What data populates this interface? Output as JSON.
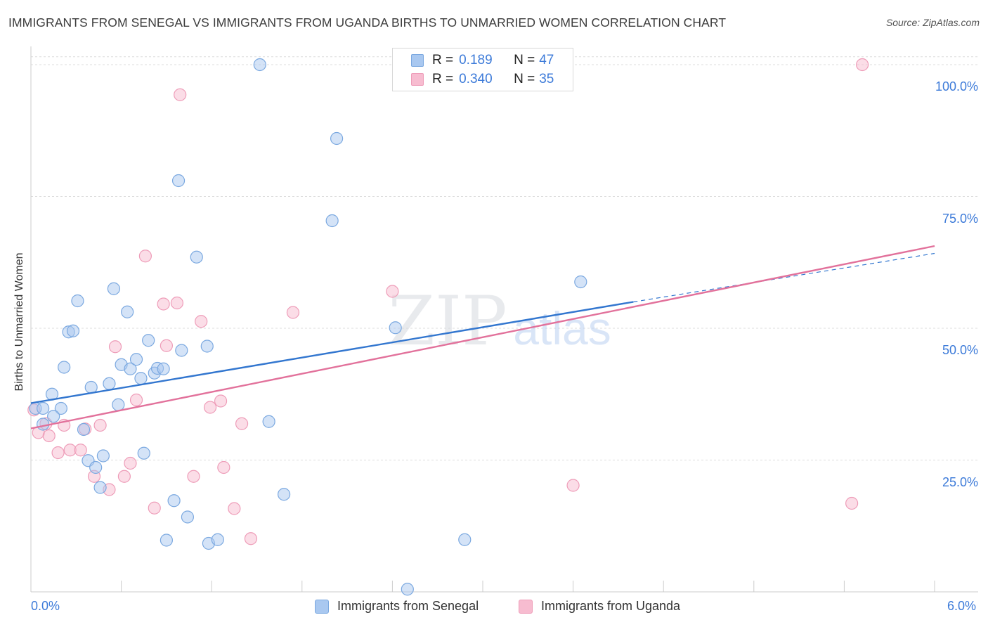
{
  "title": "IMMIGRANTS FROM SENEGAL VS IMMIGRANTS FROM UGANDA BIRTHS TO UNMARRIED WOMEN CORRELATION CHART",
  "source": "Source: ZipAtlas.com",
  "watermark": {
    "zip": "ZIP",
    "atlas": "atlas"
  },
  "legend_top": {
    "r_label": "R =",
    "n_label": "N =",
    "rows": [
      {
        "r": "0.189",
        "n": "47"
      },
      {
        "r": "0.340",
        "n": "35"
      }
    ]
  },
  "colors": {
    "senegal_fill": "#a9c8f0",
    "senegal_stroke": "#7aa8e0",
    "senegal_line": "#3276cf",
    "uganda_fill": "#f7bcd0",
    "uganda_stroke": "#ee9cb8",
    "uganda_line": "#e2719b",
    "grid": "#dcdcdc",
    "axis_text": "#3d7bd9"
  },
  "chart_data": {
    "type": "scatter",
    "title": "IMMIGRANTS FROM SENEGAL VS IMMIGRANTS FROM UGANDA BIRTHS TO UNMARRIED WOMEN CORRELATION CHART",
    "xlabel": "",
    "ylabel": "Births to Unmarried Women",
    "xlim": [
      0,
      6
    ],
    "ylim": [
      0,
      104
    ],
    "x_tick_labels": {
      "min": "0.0%",
      "max": "6.0%"
    },
    "y_ticks": [
      25,
      50,
      75,
      100
    ],
    "y_tick_labels": [
      "25.0%",
      "50.0%",
      "75.0%",
      "100.0%"
    ],
    "legend_position": "bottom",
    "series": [
      {
        "name": "Immigrants from Senegal",
        "r": 0.189,
        "n": 47,
        "trend": {
          "x0": 0.0,
          "y0": 35.8,
          "x1": 4.0,
          "y1": 55.0,
          "dashed_to_x": 6.0,
          "dashed_to_y": 64.2
        },
        "points": [
          [
            0.03,
            34.8
          ],
          [
            0.08,
            34.8
          ],
          [
            0.14,
            37.5
          ],
          [
            0.2,
            34.8
          ],
          [
            0.15,
            33.3
          ],
          [
            0.08,
            31.8
          ],
          [
            0.22,
            42.6
          ],
          [
            0.25,
            49.3
          ],
          [
            0.28,
            49.5
          ],
          [
            0.31,
            55.2
          ],
          [
            0.35,
            30.8
          ],
          [
            0.4,
            38.8
          ],
          [
            0.52,
            39.5
          ],
          [
            0.55,
            57.5
          ],
          [
            0.58,
            35.5
          ],
          [
            0.6,
            43.1
          ],
          [
            0.64,
            53.1
          ],
          [
            0.66,
            42.3
          ],
          [
            0.7,
            44.1
          ],
          [
            0.73,
            40.5
          ],
          [
            0.75,
            26.3
          ],
          [
            0.78,
            47.7
          ],
          [
            0.82,
            41.5
          ],
          [
            0.84,
            42.4
          ],
          [
            0.88,
            42.3
          ],
          [
            0.9,
            9.8
          ],
          [
            0.95,
            17.3
          ],
          [
            0.98,
            78.0
          ],
          [
            1.0,
            45.8
          ],
          [
            1.04,
            14.2
          ],
          [
            1.1,
            63.5
          ],
          [
            1.17,
            46.6
          ],
          [
            1.18,
            9.2
          ],
          [
            1.24,
            9.9
          ],
          [
            0.38,
            24.9
          ],
          [
            0.43,
            23.6
          ],
          [
            0.46,
            19.8
          ],
          [
            0.48,
            25.8
          ],
          [
            1.52,
            100.0
          ],
          [
            1.58,
            32.3
          ],
          [
            1.68,
            18.5
          ],
          [
            2.0,
            70.4
          ],
          [
            2.03,
            86.0
          ],
          [
            2.42,
            50.1
          ],
          [
            2.5,
            0.5
          ],
          [
            2.88,
            9.9
          ],
          [
            3.65,
            58.8
          ]
        ]
      },
      {
        "name": "Immigrants from Uganda",
        "r": 0.34,
        "n": 35,
        "trend": {
          "x0": 0.0,
          "y0": 31.0,
          "x1": 6.0,
          "y1": 65.6
        },
        "points": [
          [
            0.05,
            30.2
          ],
          [
            0.12,
            29.6
          ],
          [
            0.18,
            26.4
          ],
          [
            0.22,
            31.6
          ],
          [
            0.26,
            26.9
          ],
          [
            0.33,
            26.9
          ],
          [
            0.36,
            30.9
          ],
          [
            0.42,
            21.9
          ],
          [
            0.46,
            31.6
          ],
          [
            0.52,
            19.4
          ],
          [
            0.56,
            46.5
          ],
          [
            0.62,
            21.9
          ],
          [
            0.66,
            24.4
          ],
          [
            0.7,
            36.4
          ],
          [
            0.76,
            63.7
          ],
          [
            0.82,
            15.9
          ],
          [
            0.88,
            54.6
          ],
          [
            0.9,
            46.7
          ],
          [
            0.97,
            54.8
          ],
          [
            0.99,
            94.3
          ],
          [
            1.08,
            21.9
          ],
          [
            1.13,
            51.3
          ],
          [
            1.19,
            35.0
          ],
          [
            1.26,
            36.2
          ],
          [
            1.28,
            23.6
          ],
          [
            1.35,
            15.8
          ],
          [
            1.4,
            31.9
          ],
          [
            1.46,
            10.1
          ],
          [
            1.74,
            53.0
          ],
          [
            2.4,
            57.0
          ],
          [
            3.6,
            20.2
          ],
          [
            5.45,
            16.8
          ],
          [
            5.52,
            100.0
          ],
          [
            0.1,
            31.9
          ],
          [
            0.02,
            34.5
          ]
        ]
      }
    ]
  }
}
